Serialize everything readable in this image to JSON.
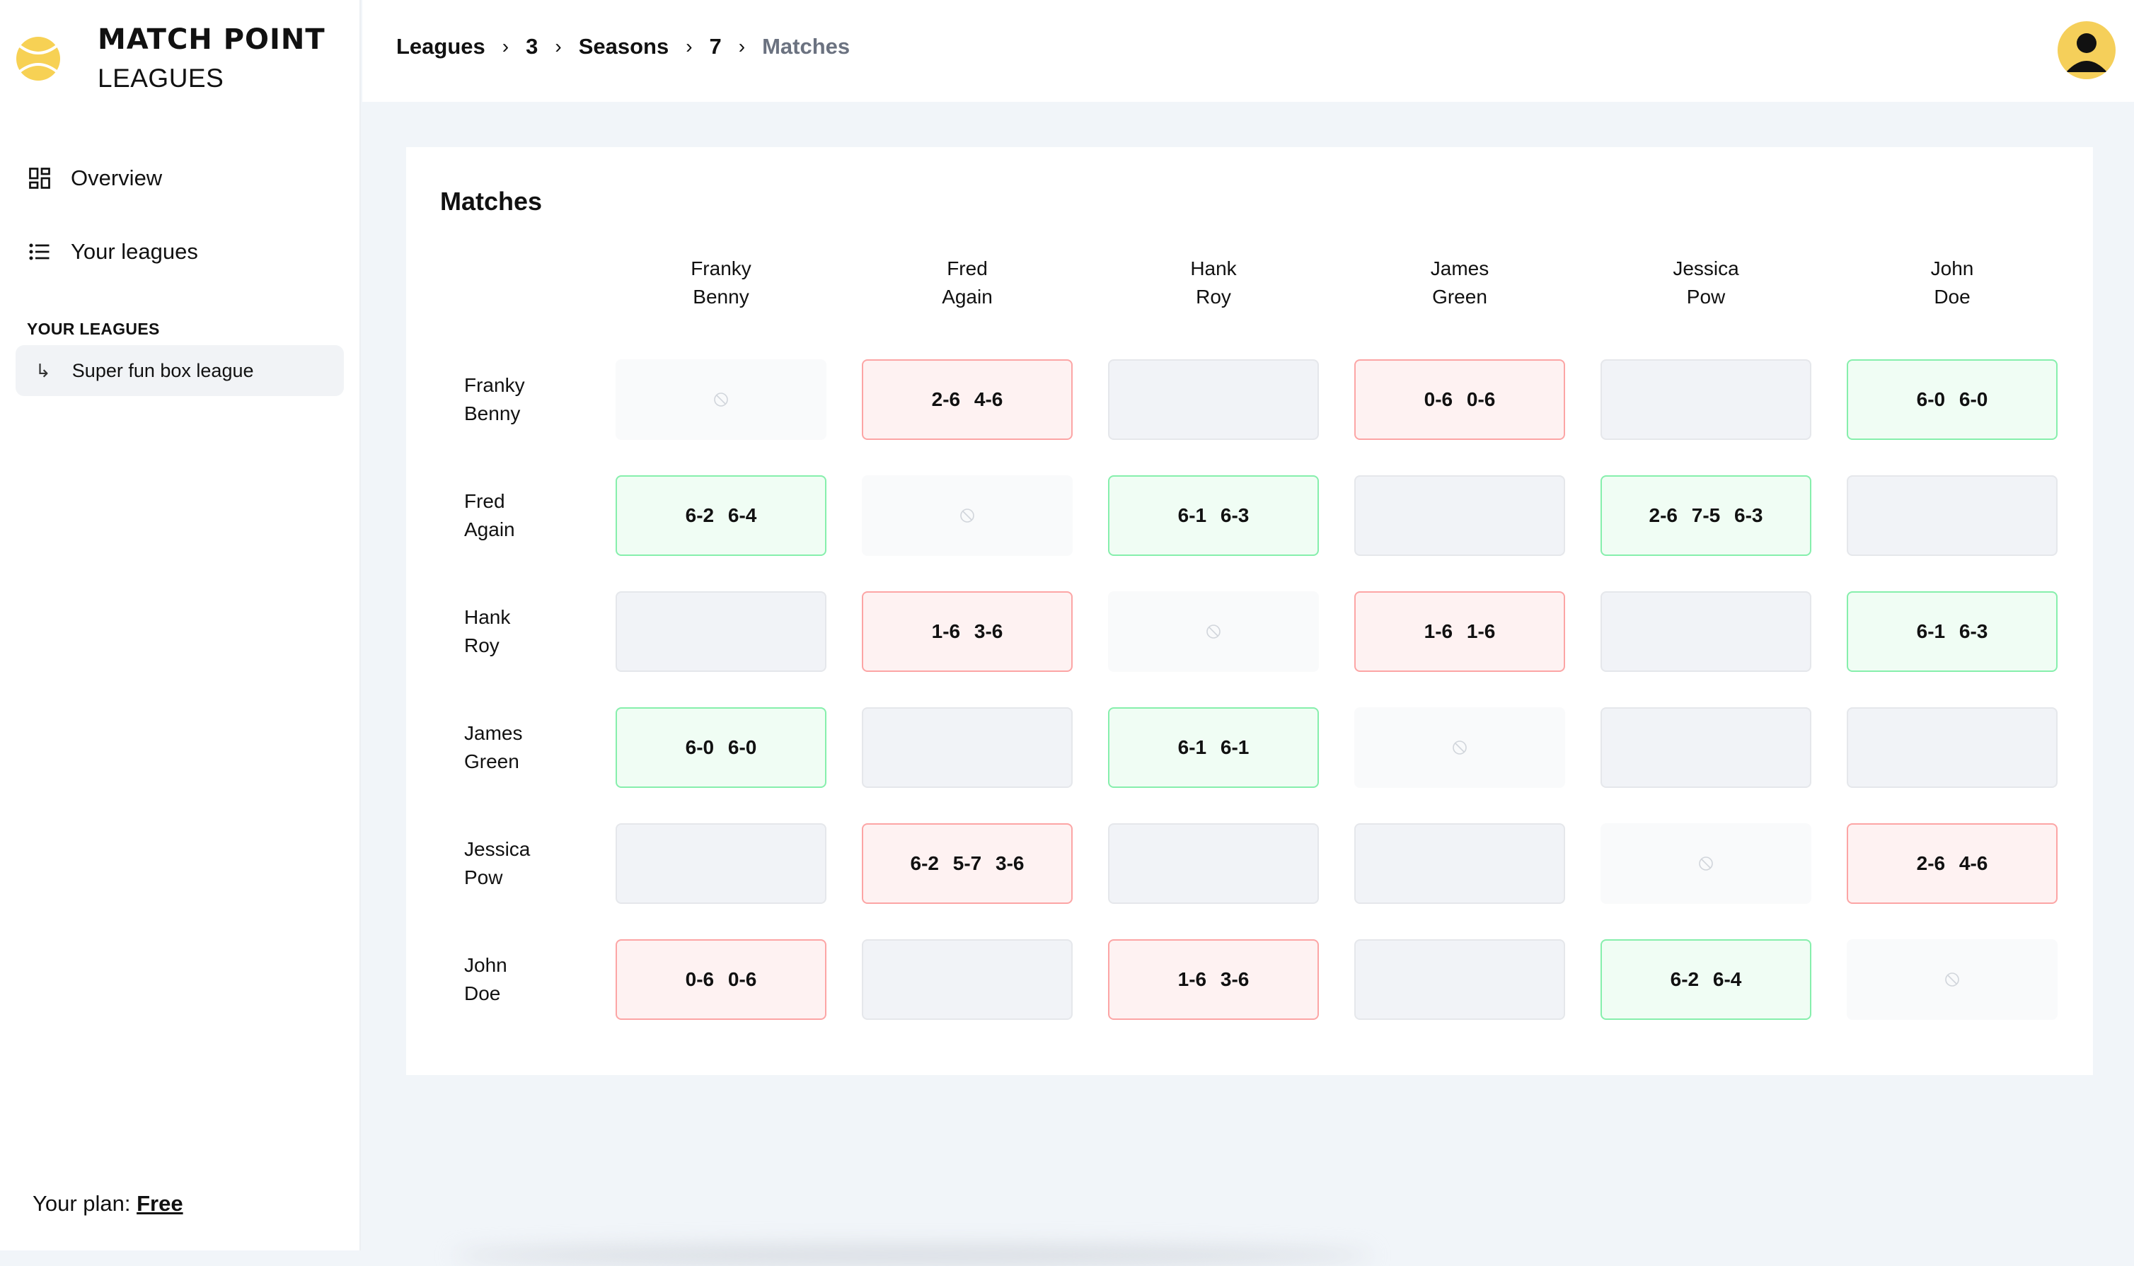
{
  "brand": {
    "title": "MATCH POINT",
    "subtitle": "LEAGUES"
  },
  "nav": {
    "overview": "Overview",
    "your_leagues": "Your leagues"
  },
  "sidebar": {
    "section_label": "YOUR LEAGUES",
    "league": "Super fun box league",
    "plan_label": "Your plan:",
    "plan_value": "Free"
  },
  "breadcrumb": {
    "leagues": "Leagues",
    "league_id": "3",
    "seasons": "Seasons",
    "season_id": "7",
    "current": "Matches"
  },
  "card": {
    "title": "Matches"
  },
  "players": [
    {
      "first": "Franky",
      "last": "Benny"
    },
    {
      "first": "Fred",
      "last": "Again"
    },
    {
      "first": "Hank",
      "last": "Roy"
    },
    {
      "first": "James",
      "last": "Green"
    },
    {
      "first": "Jessica",
      "last": "Pow"
    },
    {
      "first": "John",
      "last": "Doe"
    }
  ],
  "matrix": [
    [
      {
        "s": "self",
        "t": ""
      },
      {
        "s": "loss",
        "t": "2-6 4-6"
      },
      {
        "s": "empty",
        "t": ""
      },
      {
        "s": "loss",
        "t": "0-6 0-6"
      },
      {
        "s": "empty",
        "t": ""
      },
      {
        "s": "win",
        "t": "6-0 6-0"
      }
    ],
    [
      {
        "s": "win",
        "t": "6-2 6-4"
      },
      {
        "s": "self",
        "t": ""
      },
      {
        "s": "win",
        "t": "6-1 6-3"
      },
      {
        "s": "empty",
        "t": ""
      },
      {
        "s": "win",
        "t": "2-6 7-5 6-3"
      },
      {
        "s": "empty",
        "t": ""
      }
    ],
    [
      {
        "s": "empty",
        "t": ""
      },
      {
        "s": "loss",
        "t": "1-6 3-6"
      },
      {
        "s": "self",
        "t": ""
      },
      {
        "s": "loss",
        "t": "1-6 1-6"
      },
      {
        "s": "empty",
        "t": ""
      },
      {
        "s": "win",
        "t": "6-1 6-3"
      }
    ],
    [
      {
        "s": "win",
        "t": "6-0 6-0"
      },
      {
        "s": "empty",
        "t": ""
      },
      {
        "s": "win",
        "t": "6-1 6-1"
      },
      {
        "s": "self",
        "t": ""
      },
      {
        "s": "empty",
        "t": ""
      },
      {
        "s": "empty",
        "t": ""
      }
    ],
    [
      {
        "s": "empty",
        "t": ""
      },
      {
        "s": "loss",
        "t": "6-2 5-7 3-6"
      },
      {
        "s": "empty",
        "t": ""
      },
      {
        "s": "empty",
        "t": ""
      },
      {
        "s": "self",
        "t": ""
      },
      {
        "s": "loss",
        "t": "2-6 4-6"
      }
    ],
    [
      {
        "s": "loss",
        "t": "0-6 0-6"
      },
      {
        "s": "empty",
        "t": ""
      },
      {
        "s": "loss",
        "t": "1-6 3-6"
      },
      {
        "s": "empty",
        "t": ""
      },
      {
        "s": "win",
        "t": "6-2 6-4"
      },
      {
        "s": "self",
        "t": ""
      }
    ]
  ]
}
